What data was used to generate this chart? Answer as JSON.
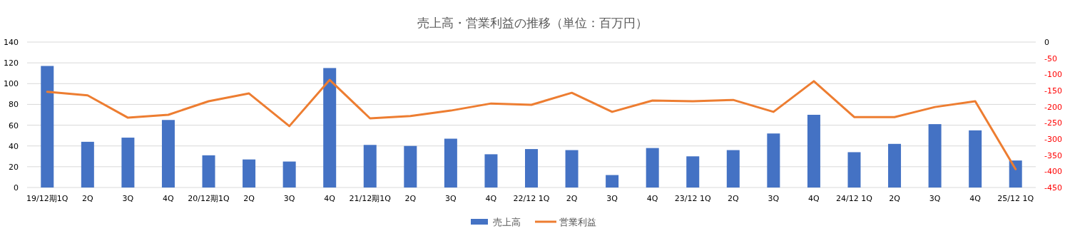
{
  "chart_data": {
    "type": "bar",
    "title": "売上高・営業利益の推移（単位：百万円）",
    "categories": [
      "19/12期1Q",
      "2Q",
      "3Q",
      "4Q",
      "20/12期1Q",
      "2Q",
      "3Q",
      "4Q",
      "21/12期1Q",
      "2Q",
      "3Q",
      "4Q",
      "22/12 1Q",
      "2Q",
      "3Q",
      "4Q",
      "23/12 1Q",
      "2Q",
      "3Q",
      "4Q",
      "24/12 1Q",
      "2Q",
      "3Q",
      "4Q",
      "25/12 1Q"
    ],
    "series": [
      {
        "name": "売上高",
        "color": "#4472c4",
        "values": [
          117,
          44,
          48,
          65,
          31,
          27,
          25,
          115,
          41,
          40,
          47,
          32,
          37,
          36,
          12,
          38,
          30,
          36,
          52,
          70,
          34,
          42,
          61,
          55,
          26
        ]
      },
      {
        "name": "営業利益",
        "type": "line",
        "axis": "y2",
        "color": "#ed7d31",
        "values": [
          -154,
          -165,
          -234,
          -225,
          -183,
          -159,
          -260,
          -117,
          -236,
          -229,
          -212,
          -190,
          -194,
          -157,
          -216,
          -181,
          -183,
          -179,
          -216,
          -121,
          -232,
          -232,
          -201,
          -183,
          -393
        ]
      }
    ],
    "ylim": [
      0,
      140
    ],
    "yticks": [
      0,
      20,
      40,
      60,
      80,
      100,
      120,
      140
    ],
    "y2lim": [
      -450,
      0
    ],
    "y2ticks": [
      0,
      -50,
      -100,
      -150,
      -200,
      -250,
      -300,
      -350,
      -400,
      -450
    ],
    "grid": "y",
    "legend": "bottom",
    "marker": "none",
    "line_style": "solid"
  }
}
